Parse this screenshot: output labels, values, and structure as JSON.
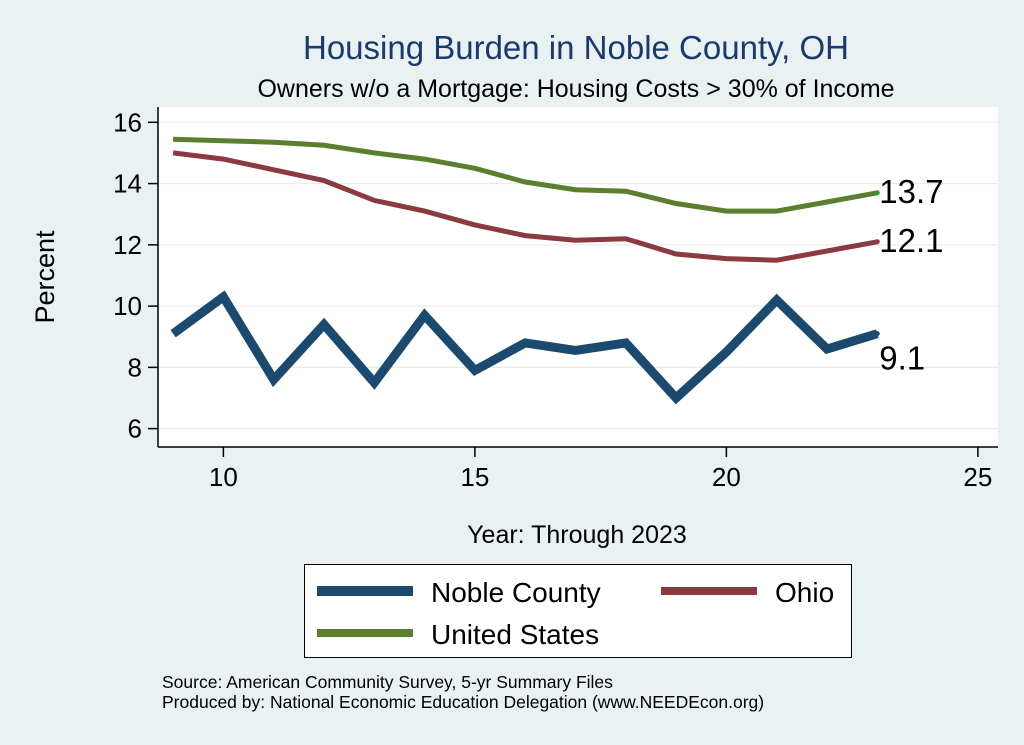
{
  "chart_data": {
    "type": "line",
    "title": "Housing Burden in Noble County, OH",
    "subtitle": "Owners w/o a Mortgage: Housing Costs > 30% of Income",
    "xlabel": "Year: Through 2023",
    "ylabel": "Percent",
    "xlim": [
      8.7,
      25.4
    ],
    "ylim": [
      5.4,
      16.5
    ],
    "xticks": [
      10,
      15,
      20,
      25
    ],
    "yticks": [
      6,
      8,
      10,
      12,
      14,
      16
    ],
    "grid": true,
    "x": [
      9,
      10,
      11,
      12,
      13,
      14,
      15,
      16,
      17,
      18,
      19,
      20,
      21,
      22,
      23
    ],
    "series": [
      {
        "name": "Noble County",
        "color": "#1b4a6e",
        "values": [
          9.1,
          10.3,
          7.6,
          9.4,
          7.5,
          9.7,
          7.9,
          8.8,
          8.55,
          8.8,
          7.0,
          8.5,
          10.2,
          8.6,
          9.1
        ],
        "end_label": "9.1"
      },
      {
        "name": "Ohio",
        "color": "#8b3a3f",
        "values": [
          15.0,
          14.8,
          14.45,
          14.1,
          13.45,
          13.1,
          12.65,
          12.3,
          12.15,
          12.2,
          11.7,
          11.55,
          11.5,
          11.8,
          12.1
        ],
        "end_label": "12.1"
      },
      {
        "name": "United States",
        "color": "#5b7f2f",
        "values": [
          15.45,
          15.4,
          15.35,
          15.25,
          15.0,
          14.8,
          14.5,
          14.05,
          13.8,
          13.75,
          13.35,
          13.1,
          13.1,
          13.4,
          13.7
        ],
        "end_label": "13.7"
      }
    ]
  },
  "source_lines": [
    "Source: American Community Survey, 5-yr Summary Files",
    "Produced by: National Economic Education Delegation (www.NEEDEcon.org)"
  ]
}
